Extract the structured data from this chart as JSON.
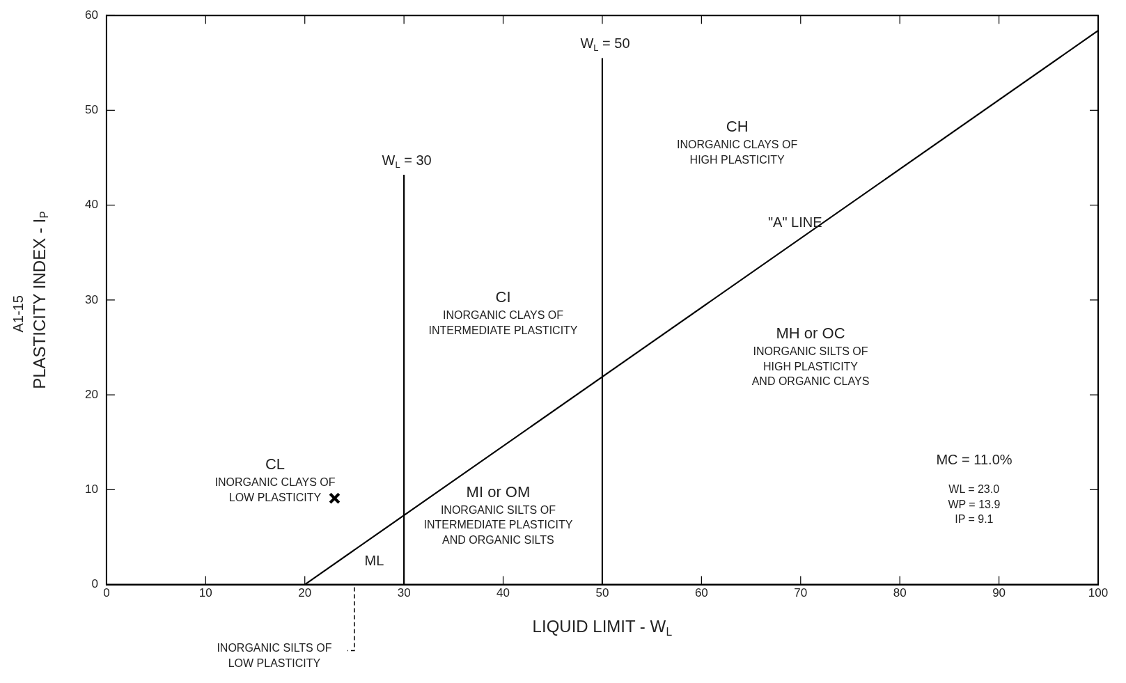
{
  "chart_data": {
    "type": "line",
    "xlabel": "LIQUID LIMIT - W$_{L}$",
    "ylabel": "PLASTICITY INDEX - I$_{P}$",
    "xlim": [
      0,
      100
    ],
    "xticks": [
      0,
      10,
      20,
      30,
      40,
      50,
      60,
      70,
      80,
      90,
      100
    ],
    "ylim": [
      0,
      60
    ],
    "yticks": [
      0,
      10,
      20,
      30,
      40,
      50,
      60
    ],
    "marker": "none",
    "legend": false,
    "series": [
      {
        "type": "line",
        "color": "#000000",
        "x": [
          20,
          100
        ],
        "values": [
          0,
          58.4
        ]
      },
      {
        "type": "scatter",
        "marker": "cross",
        "color": "#000000",
        "x": [
          23.0
        ],
        "values": [
          9.1
        ]
      }
    ],
    "annotations": [
      {
        "text": "\"A\" LINE",
        "x": 70,
        "y": 36.5
      },
      "INORGANIC SILTS OF\nLOW PLASTICITY",
      "CH\nINORGANIC CLAYS OF\nHIGH PLASTICITY",
      "CI\nINORGANIC CLAYS OF\nINTERMEDIATE PLASTICITY",
      "MH or OC\nINORGANIC SILTS OF\nHIGH PLASTICITY\nAND ORGANIC CLAYS",
      "CL\nINORGANIC CLAYS OF\nLOW PLASTICITY",
      "MI or OM\nINORGANIC SILTS OF\nINTERMEDIATE PLASTICITY\nAND ORGANIC SILTS",
      "ML",
      "MC = 11.0%",
      "WL = 23.0\nWP = 13.9\nIP = 9.1",
      "A1-15"
    ],
    "ref_lines": [
      {
        "axis": "x",
        "value": 30,
        "label": "W$_{L}$ = 30",
        "color": "#000000"
      },
      {
        "axis": "x",
        "value": 50,
        "label": "W$_{L}$ = 50",
        "color": "#000000"
      }
    ]
  }
}
